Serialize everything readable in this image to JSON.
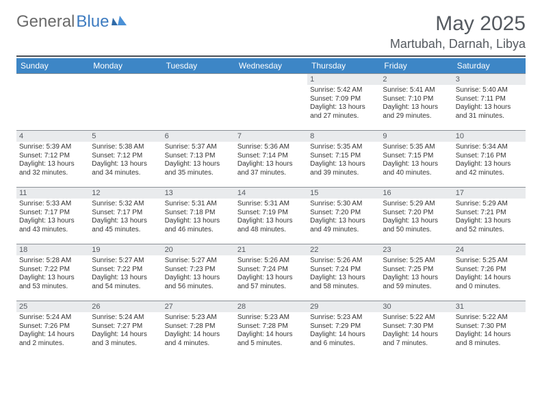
{
  "logo": {
    "word1": "General",
    "word2": "Blue"
  },
  "header": {
    "title": "May 2025",
    "location": "Martubah, Darnah, Libya"
  },
  "colors": {
    "header_bar": "#3d86c6",
    "daynum_bg": "#e9ebed",
    "title_text": "#555a60",
    "logo_gray": "#6a6a6a",
    "logo_blue": "#3d7bc0",
    "rule": "#4a4f55"
  },
  "dow": [
    "Sunday",
    "Monday",
    "Tuesday",
    "Wednesday",
    "Thursday",
    "Friday",
    "Saturday"
  ],
  "labels": {
    "sunrise": "Sunrise: ",
    "sunset": "Sunset: ",
    "daylight": "Daylight: "
  },
  "cells": [
    {
      "n": "",
      "empty": true
    },
    {
      "n": "",
      "empty": true
    },
    {
      "n": "",
      "empty": true
    },
    {
      "n": "",
      "empty": true
    },
    {
      "n": "1",
      "sr": "5:42 AM",
      "ss": "7:09 PM",
      "dl": "13 hours and 27 minutes."
    },
    {
      "n": "2",
      "sr": "5:41 AM",
      "ss": "7:10 PM",
      "dl": "13 hours and 29 minutes."
    },
    {
      "n": "3",
      "sr": "5:40 AM",
      "ss": "7:11 PM",
      "dl": "13 hours and 31 minutes."
    },
    {
      "n": "4",
      "sr": "5:39 AM",
      "ss": "7:12 PM",
      "dl": "13 hours and 32 minutes."
    },
    {
      "n": "5",
      "sr": "5:38 AM",
      "ss": "7:12 PM",
      "dl": "13 hours and 34 minutes."
    },
    {
      "n": "6",
      "sr": "5:37 AM",
      "ss": "7:13 PM",
      "dl": "13 hours and 35 minutes."
    },
    {
      "n": "7",
      "sr": "5:36 AM",
      "ss": "7:14 PM",
      "dl": "13 hours and 37 minutes."
    },
    {
      "n": "8",
      "sr": "5:35 AM",
      "ss": "7:15 PM",
      "dl": "13 hours and 39 minutes."
    },
    {
      "n": "9",
      "sr": "5:35 AM",
      "ss": "7:15 PM",
      "dl": "13 hours and 40 minutes."
    },
    {
      "n": "10",
      "sr": "5:34 AM",
      "ss": "7:16 PM",
      "dl": "13 hours and 42 minutes."
    },
    {
      "n": "11",
      "sr": "5:33 AM",
      "ss": "7:17 PM",
      "dl": "13 hours and 43 minutes."
    },
    {
      "n": "12",
      "sr": "5:32 AM",
      "ss": "7:17 PM",
      "dl": "13 hours and 45 minutes."
    },
    {
      "n": "13",
      "sr": "5:31 AM",
      "ss": "7:18 PM",
      "dl": "13 hours and 46 minutes."
    },
    {
      "n": "14",
      "sr": "5:31 AM",
      "ss": "7:19 PM",
      "dl": "13 hours and 48 minutes."
    },
    {
      "n": "15",
      "sr": "5:30 AM",
      "ss": "7:20 PM",
      "dl": "13 hours and 49 minutes."
    },
    {
      "n": "16",
      "sr": "5:29 AM",
      "ss": "7:20 PM",
      "dl": "13 hours and 50 minutes."
    },
    {
      "n": "17",
      "sr": "5:29 AM",
      "ss": "7:21 PM",
      "dl": "13 hours and 52 minutes."
    },
    {
      "n": "18",
      "sr": "5:28 AM",
      "ss": "7:22 PM",
      "dl": "13 hours and 53 minutes."
    },
    {
      "n": "19",
      "sr": "5:27 AM",
      "ss": "7:22 PM",
      "dl": "13 hours and 54 minutes."
    },
    {
      "n": "20",
      "sr": "5:27 AM",
      "ss": "7:23 PM",
      "dl": "13 hours and 56 minutes."
    },
    {
      "n": "21",
      "sr": "5:26 AM",
      "ss": "7:24 PM",
      "dl": "13 hours and 57 minutes."
    },
    {
      "n": "22",
      "sr": "5:26 AM",
      "ss": "7:24 PM",
      "dl": "13 hours and 58 minutes."
    },
    {
      "n": "23",
      "sr": "5:25 AM",
      "ss": "7:25 PM",
      "dl": "13 hours and 59 minutes."
    },
    {
      "n": "24",
      "sr": "5:25 AM",
      "ss": "7:26 PM",
      "dl": "14 hours and 0 minutes."
    },
    {
      "n": "25",
      "sr": "5:24 AM",
      "ss": "7:26 PM",
      "dl": "14 hours and 2 minutes."
    },
    {
      "n": "26",
      "sr": "5:24 AM",
      "ss": "7:27 PM",
      "dl": "14 hours and 3 minutes."
    },
    {
      "n": "27",
      "sr": "5:23 AM",
      "ss": "7:28 PM",
      "dl": "14 hours and 4 minutes."
    },
    {
      "n": "28",
      "sr": "5:23 AM",
      "ss": "7:28 PM",
      "dl": "14 hours and 5 minutes."
    },
    {
      "n": "29",
      "sr": "5:23 AM",
      "ss": "7:29 PM",
      "dl": "14 hours and 6 minutes."
    },
    {
      "n": "30",
      "sr": "5:22 AM",
      "ss": "7:30 PM",
      "dl": "14 hours and 7 minutes."
    },
    {
      "n": "31",
      "sr": "5:22 AM",
      "ss": "7:30 PM",
      "dl": "14 hours and 8 minutes."
    }
  ]
}
